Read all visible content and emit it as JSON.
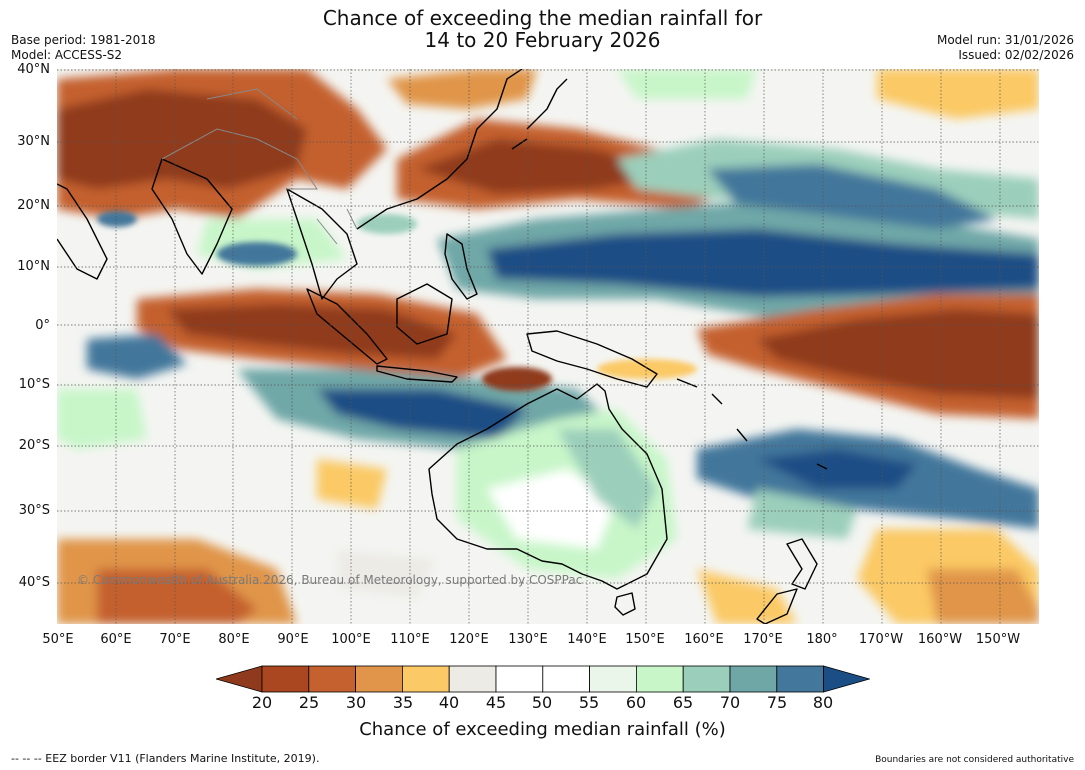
{
  "title": {
    "line1": "Chance of exceeding the median rainfall for",
    "line2": "14 to 20 February 2026"
  },
  "meta_left": {
    "base_period": "Base period: 1981-2018",
    "model": "Model: ACCESS-S2"
  },
  "meta_right": {
    "model_run": "Model run: 31/01/2026",
    "issued": "Issued: 02/02/2026"
  },
  "map": {
    "lat_labels": [
      "40°N",
      "30°N",
      "20°N",
      "10°N",
      "0°",
      "10°S",
      "20°S",
      "30°S",
      "40°S"
    ],
    "lon_labels": [
      "50°E",
      "60°E",
      "70°E",
      "80°E",
      "90°E",
      "100°E",
      "110°E",
      "120°E",
      "130°E",
      "140°E",
      "150°E",
      "160°E",
      "170°E",
      "180°",
      "170°W",
      "160°W",
      "150°W"
    ],
    "copyright": "© Commonwealth of Australia 2026, Bureau of Meteorology, supported by COSPPac",
    "gridlines": true,
    "coastline_color": "#000000",
    "border_color": "#888888"
  },
  "colorbar": {
    "ticks": [
      "20",
      "25",
      "30",
      "35",
      "40",
      "45",
      "50",
      "55",
      "60",
      "65",
      "70",
      "75",
      "80"
    ],
    "colors": [
      "#8f3a1c",
      "#aa4620",
      "#c4612e",
      "#e0954a",
      "#fbc965",
      "#ecebe6",
      "#ffffff",
      "#ffffff",
      "#eaf6ea",
      "#c8f6c9",
      "#9bcfbb",
      "#6fa7a7",
      "#43779b",
      "#1a4e85"
    ],
    "title": "Chance of exceeding median rainfall (%)"
  },
  "footer": {
    "left": "--  --  -- EEZ border V11 (Flanders Marine Institute, 2019).",
    "right": "Boundaries are not considered authoritative"
  }
}
